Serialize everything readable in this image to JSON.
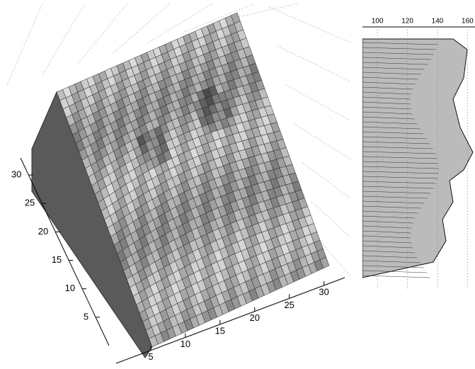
{
  "chart_data": [
    {
      "type": "surface",
      "xlim": [
        0,
        33
      ],
      "xticks": [
        5,
        10,
        15,
        20,
        25,
        30
      ],
      "ylim": [
        0,
        33
      ],
      "yticks": [
        5,
        10,
        15,
        20,
        25,
        30
      ]
    },
    {
      "type": "surface",
      "xlim": [
        90,
        165
      ],
      "xticks": [
        100,
        120,
        140,
        160
      ]
    }
  ]
}
